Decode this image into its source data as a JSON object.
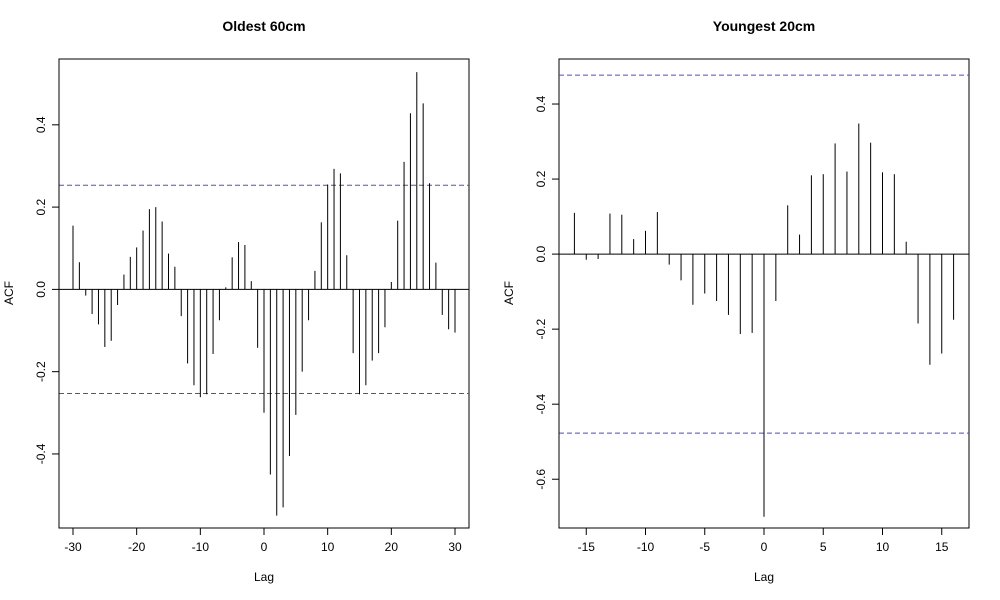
{
  "chart_data": [
    {
      "type": "bar",
      "title": "Oldest 60cm",
      "xlabel": "Lag",
      "ylabel": "ACF",
      "xlim": [
        -32.2,
        32.2
      ],
      "ylim": [
        -0.58,
        0.56
      ],
      "xticks": [
        -30,
        -20,
        -10,
        0,
        10,
        20,
        30
      ],
      "yticks": [
        -0.4,
        -0.2,
        0.0,
        0.2,
        0.4
      ],
      "confidence_limit": 0.253,
      "confidence_color": "#4a4ad4",
      "bar_color": "#000000",
      "x": [
        -30,
        -29,
        -28,
        -27,
        -26,
        -25,
        -24,
        -23,
        -22,
        -21,
        -20,
        -19,
        -18,
        -17,
        -16,
        -15,
        -14,
        -13,
        -12,
        -11,
        -10,
        -9,
        -8,
        -7,
        -6,
        -5,
        -4,
        -3,
        -2,
        -1,
        0,
        1,
        2,
        3,
        4,
        5,
        6,
        7,
        8,
        9,
        10,
        11,
        12,
        13,
        14,
        15,
        16,
        17,
        18,
        19,
        20,
        21,
        22,
        23,
        24,
        25,
        26,
        27,
        28,
        29,
        30
      ],
      "values": [
        0.155,
        0.066,
        -0.015,
        -0.06,
        -0.085,
        -0.14,
        -0.125,
        -0.038,
        0.036,
        0.079,
        0.102,
        0.143,
        0.195,
        0.2,
        0.165,
        0.087,
        0.055,
        -0.065,
        -0.18,
        -0.233,
        -0.262,
        -0.255,
        -0.157,
        -0.075,
        0.005,
        0.078,
        0.115,
        0.108,
        0.02,
        -0.142,
        -0.3,
        -0.45,
        -0.55,
        -0.53,
        -0.405,
        -0.305,
        -0.2,
        -0.075,
        0.045,
        0.163,
        0.255,
        0.293,
        0.282,
        0.083,
        -0.155,
        -0.255,
        -0.233,
        -0.173,
        -0.155,
        -0.092,
        0.018,
        0.167,
        0.31,
        0.428,
        0.528,
        0.452,
        0.258,
        0.065,
        -0.062,
        -0.097,
        -0.105
      ]
    },
    {
      "type": "bar",
      "title": "Youngest 20cm",
      "xlabel": "Lag",
      "ylabel": "ACF",
      "xlim": [
        -17.3,
        17.3
      ],
      "ylim": [
        -0.73,
        0.52
      ],
      "xticks": [
        -15,
        -10,
        -5,
        0,
        5,
        10,
        15
      ],
      "yticks": [
        -0.6,
        -0.4,
        -0.2,
        0.0,
        0.2,
        0.4
      ],
      "confidence_limit": 0.477,
      "confidence_color": "#4a4ad4",
      "bar_color": "#000000",
      "x": [
        -16,
        -15,
        -14,
        -13,
        -12,
        -11,
        -10,
        -9,
        -8,
        -7,
        -6,
        -5,
        -4,
        -3,
        -2,
        -1,
        0,
        1,
        2,
        3,
        4,
        5,
        6,
        7,
        8,
        9,
        10,
        11,
        12,
        13,
        14,
        15,
        16
      ],
      "values": [
        0.11,
        -0.015,
        -0.013,
        0.108,
        0.105,
        0.04,
        0.062,
        0.112,
        -0.028,
        -0.07,
        -0.135,
        -0.105,
        -0.125,
        -0.162,
        -0.213,
        -0.21,
        -0.7,
        -0.125,
        0.13,
        0.052,
        0.21,
        0.213,
        0.295,
        0.22,
        0.348,
        0.297,
        0.218,
        0.213,
        0.033,
        -0.185,
        -0.295,
        -0.265,
        -0.175
      ]
    }
  ]
}
